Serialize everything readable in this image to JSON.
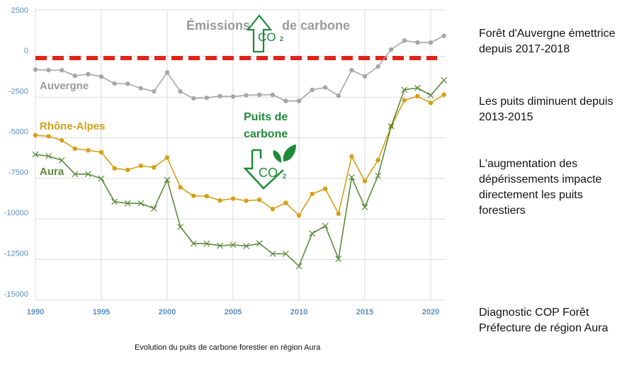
{
  "chart_data": {
    "type": "line",
    "title": "",
    "caption": "Evolution du puits de carbone forestier en région Aura",
    "xlabel": "",
    "ylabel": "",
    "xlim": [
      1990,
      2021
    ],
    "ylim": [
      -15000,
      2500
    ],
    "x_ticks": [
      1990,
      1995,
      2000,
      2005,
      2010,
      2015,
      2020
    ],
    "y_ticks": [
      2500,
      0,
      -2500,
      -5000,
      -7500,
      -10000,
      -12500,
      -15000
    ],
    "grid": true,
    "x": [
      1990,
      1991,
      1992,
      1993,
      1994,
      1995,
      1996,
      1997,
      1998,
      1999,
      2000,
      2001,
      2002,
      2003,
      2004,
      2005,
      2006,
      2007,
      2008,
      2009,
      2010,
      2011,
      2012,
      2013,
      2014,
      2015,
      2016,
      2017,
      2018,
      2019,
      2020,
      2021
    ],
    "series": [
      {
        "name": "Auvergne",
        "color": "#a6a6a6",
        "marker": "dot",
        "values": [
          -800,
          -830,
          -840,
          -1180,
          -1080,
          -1230,
          -1660,
          -1670,
          -1950,
          -2140,
          -970,
          -2150,
          -2570,
          -2540,
          -2430,
          -2460,
          -2380,
          -2350,
          -2350,
          -2730,
          -2730,
          -2050,
          -1900,
          -2410,
          -840,
          -1210,
          -610,
          440,
          990,
          870,
          870,
          1280
        ]
      },
      {
        "name": "Rhône-Alpes",
        "color": "#d4a017",
        "marker": "dot",
        "values": [
          -4840,
          -4910,
          -5160,
          -5670,
          -5770,
          -5890,
          -6880,
          -6980,
          -6730,
          -6820,
          -6220,
          -8050,
          -8580,
          -8600,
          -8860,
          -8750,
          -8880,
          -8820,
          -9390,
          -9010,
          -9780,
          -8460,
          -8140,
          -9680,
          -6150,
          -7670,
          -6380,
          -4290,
          -2690,
          -2440,
          -2850,
          -2340
        ]
      },
      {
        "name": "Aura",
        "color": "#5a8a3a",
        "marker": "x",
        "values": [
          -6030,
          -6130,
          -6390,
          -7240,
          -7240,
          -7510,
          -8940,
          -9040,
          -9040,
          -9360,
          -7590,
          -10490,
          -11520,
          -11520,
          -11650,
          -11600,
          -11670,
          -11510,
          -12150,
          -12150,
          -12910,
          -10900,
          -10430,
          -12470,
          -7440,
          -9270,
          -7340,
          -4290,
          -2040,
          -1930,
          -2380,
          -1450
        ]
      }
    ],
    "threshold_line": {
      "value": 0,
      "color": "#e02418",
      "style": "dashed"
    },
    "annotations": {
      "emissions_prefix": "Émissions",
      "emissions_suffix": "de carbone",
      "co2_label": "CO",
      "co2_sub": "2",
      "sink_line1": "Puits de",
      "sink_line2": "carbone"
    }
  },
  "notes": [
    [
      "Forêt d'Auvergne émettrice",
      "depuis 2017-2018"
    ],
    [
      "Les puits diminuent depuis",
      "2013-2015"
    ],
    [
      "L'augmentation des",
      "dépérissements impacte",
      "directement les puits",
      "forestiers"
    ],
    [
      "Diagnostic COP Forêt",
      "Préfecture de région Aura"
    ]
  ],
  "colors": {
    "axis_label": "#5b8fc0",
    "grid": "#d9d9d9",
    "emission_text": "#9a9a9a",
    "sink_text": "#1f8a3a",
    "icon_green": "#1f8a3a"
  }
}
